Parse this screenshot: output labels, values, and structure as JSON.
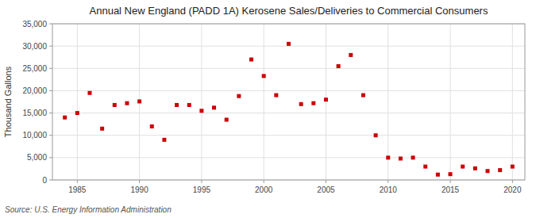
{
  "chart_data": {
    "type": "scatter",
    "title": "Annual New England (PADD 1A) Kerosene Sales/Deliveries to Commercial Consumers",
    "ylabel": "Thousand Gallons",
    "annotations": [
      "Source: U.S. Energy Information Administration"
    ],
    "x": [
      1984,
      1985,
      1986,
      1987,
      1988,
      1989,
      1990,
      1991,
      1992,
      1993,
      1994,
      1995,
      1996,
      1997,
      1998,
      1999,
      2000,
      2001,
      2002,
      2003,
      2004,
      2005,
      2006,
      2007,
      2008,
      2009,
      2010,
      2011,
      2012,
      2013,
      2014,
      2015,
      2016,
      2017,
      2018,
      2019,
      2020
    ],
    "values": [
      14000,
      15000,
      19500,
      11500,
      16800,
      17200,
      17600,
      12000,
      9000,
      16800,
      16800,
      15500,
      16200,
      13500,
      18800,
      27000,
      23300,
      19000,
      30500,
      17000,
      17200,
      18000,
      25500,
      28000,
      19000,
      10000,
      5000,
      4800,
      5000,
      3000,
      1200,
      1300,
      3000,
      2600,
      2000,
      2200,
      3000
    ],
    "color": "#CC0000",
    "marker": "square",
    "xlim": [
      1983,
      2021
    ],
    "ylim": [
      0,
      35000
    ],
    "xticks": [
      1985,
      1990,
      1995,
      2000,
      2005,
      2010,
      2015,
      2020
    ],
    "yticks": [
      0,
      {
        "value": 5000,
        "label": "5,000"
      },
      {
        "value": 10000,
        "label": "10,000"
      },
      {
        "value": 15000,
        "label": "15,000"
      },
      {
        "value": 20000,
        "label": "20,000"
      },
      {
        "value": 25000,
        "label": "25,000"
      },
      {
        "value": 30000,
        "label": "30,000"
      },
      {
        "value": 35000,
        "label": "35,000"
      }
    ],
    "grid": true
  }
}
